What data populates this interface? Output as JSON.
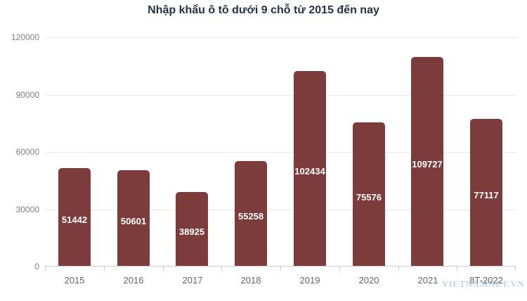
{
  "chart_data": {
    "type": "bar",
    "title": "Nhập khẩu ô tô dưới 9 chỗ từ 2015 đến nay",
    "categories": [
      "2015",
      "2016",
      "2017",
      "2018",
      "2019",
      "2020",
      "2021",
      "8T-2022"
    ],
    "values": [
      51442,
      50601,
      38925,
      55258,
      102434,
      75576,
      109727,
      77117
    ],
    "data_labels": [
      "51442",
      "50601",
      "38925",
      "55258",
      "102434",
      "75576",
      "109727",
      "77117"
    ],
    "xlabel": "",
    "ylabel": "",
    "ylim": [
      0,
      120000
    ],
    "yticks": [
      0,
      30000,
      60000,
      90000,
      120000
    ],
    "ytick_labels": [
      "0",
      "30000",
      "60000",
      "90000",
      "120000"
    ],
    "grid": true,
    "legend": "none",
    "colors": {
      "bar_fill": "#7d3c3c",
      "data_label": "#ffffff",
      "title": "#223349",
      "x_tick_label": "#666666",
      "y_tick_label": "#808080",
      "gridline": "#e6e6e6",
      "axis_line": "#cccccc",
      "watermark": "#aac8e8",
      "background": "#ffffff"
    },
    "watermark": "VIETNAMNET.VN"
  }
}
